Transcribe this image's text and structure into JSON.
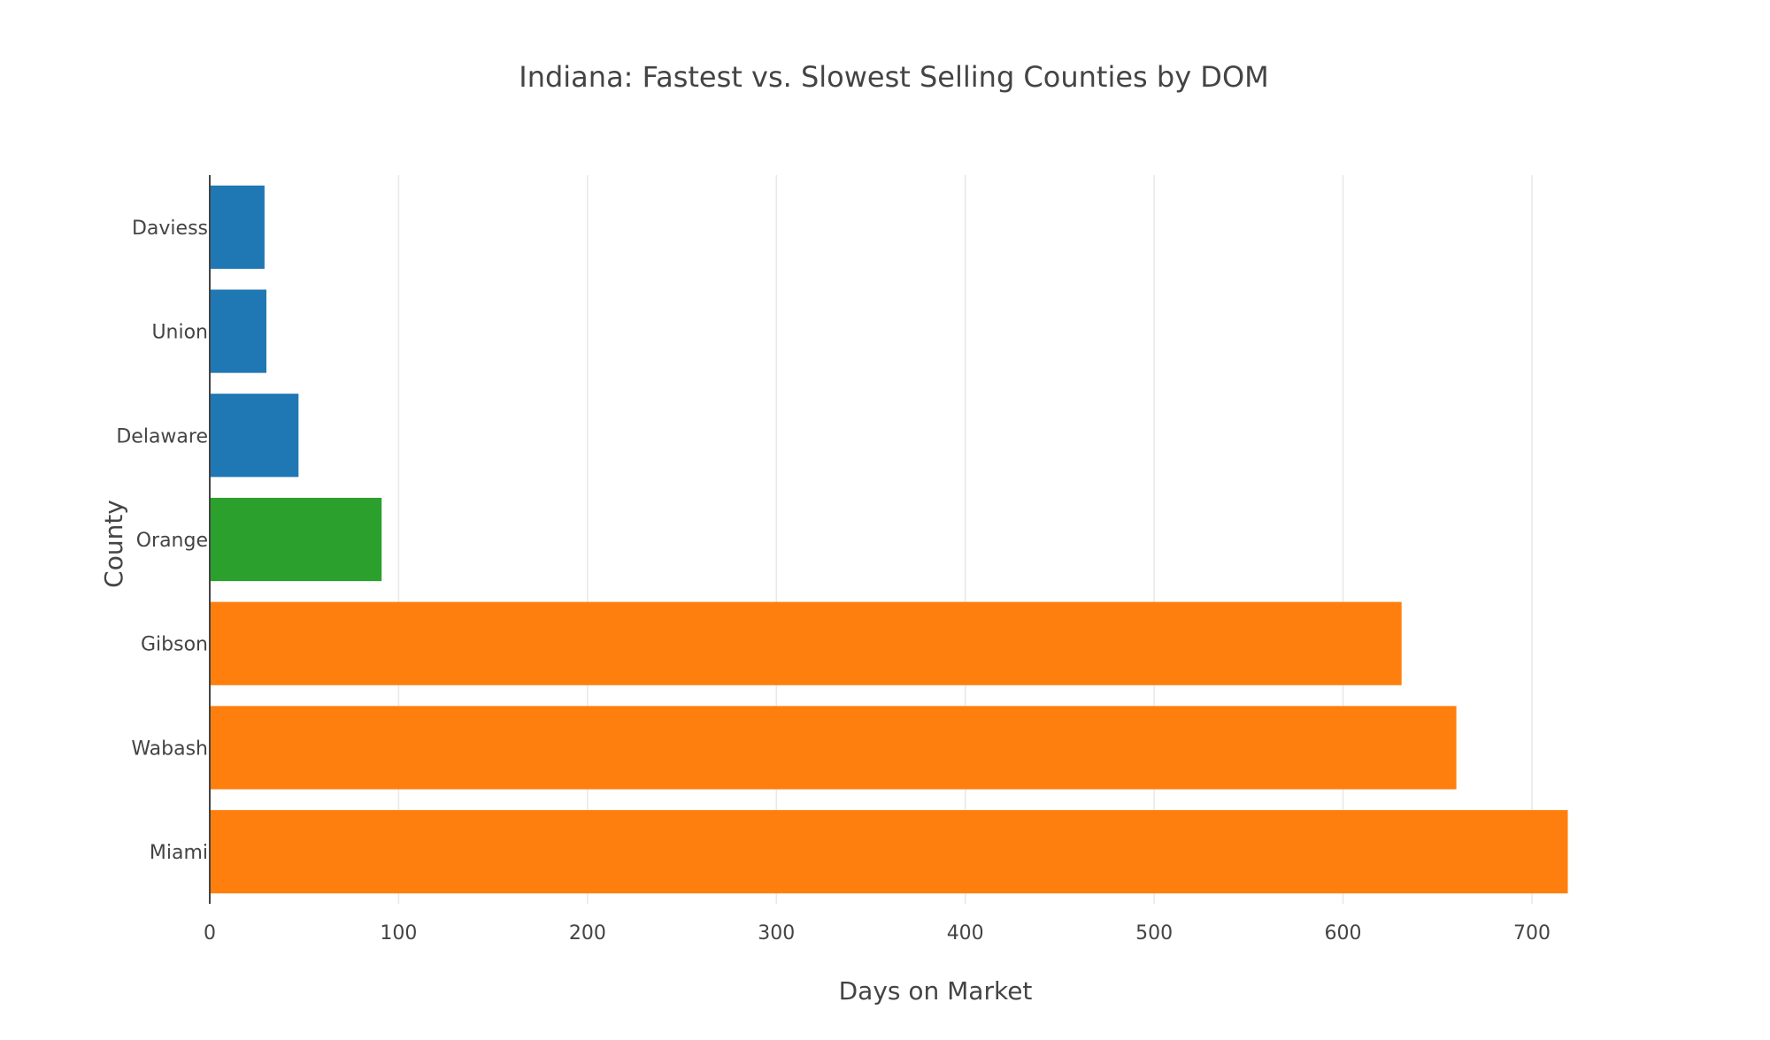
{
  "chart_data": {
    "type": "bar",
    "orientation": "horizontal",
    "title": "Indiana: Fastest vs. Slowest Selling Counties by DOM",
    "xlabel": "Days on Market",
    "ylabel": "County",
    "xlim": [
      0,
      730
    ],
    "xticks": [
      0,
      100,
      200,
      300,
      400,
      500,
      600,
      700
    ],
    "grid": "vertical",
    "legend": "none",
    "categories": [
      "Daviess",
      "Union",
      "Delaware",
      "Orange",
      "Gibson",
      "Wabash",
      "Miami"
    ],
    "values": [
      29,
      30,
      47,
      91,
      631,
      660,
      719
    ],
    "bar_colors": [
      "#1f77b4",
      "#1f77b4",
      "#1f77b4",
      "#2ca02c",
      "#ff7f0e",
      "#ff7f0e",
      "#ff7f0e"
    ]
  }
}
